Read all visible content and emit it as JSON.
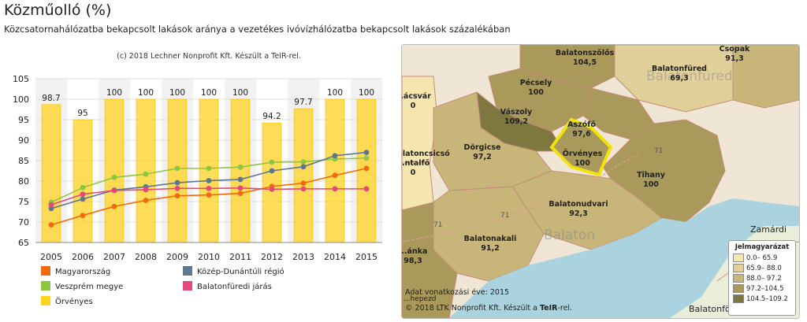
{
  "header": {
    "title": "Közműolló (%)",
    "subtitle": "Közcsatornahálózatba bekapcsolt lakások aránya a vezetékes ivóvízhálózatba bekapcsolt lakások százalékában"
  },
  "colors": {
    "bar": "#ffd21f",
    "bar_label": "#222222",
    "magyarorszag": "#f26a10",
    "veszprem": "#8ec641",
    "kozep_dunantul": "#5f7594",
    "balatonfured": "#e34a78",
    "band": "#f1f1f1",
    "grid": "#dddddd",
    "lake": "#aad3df"
  },
  "chart_data": {
    "type": "bar",
    "credit": "(c) 2018 Lechner Nonprofit Kft. Készült a TeIR-rel.",
    "categories": [
      "2005",
      "2006",
      "2007",
      "2008",
      "2009",
      "2010",
      "2011",
      "2012",
      "2013",
      "2014",
      "2015"
    ],
    "ylim": [
      65,
      105
    ],
    "yticks": [
      65,
      70,
      75,
      80,
      85,
      90,
      95,
      100,
      105
    ],
    "bar_series": {
      "name": "Örvényes",
      "values": [
        98.7,
        95,
        100,
        100,
        100,
        100,
        100,
        94.2,
        97.7,
        100,
        100
      ],
      "labels": [
        "98.7",
        "95",
        "100",
        "100",
        "100",
        "100",
        "100",
        "94.2",
        "97.7",
        "100",
        "100"
      ]
    },
    "line_series": [
      {
        "key": "magyarorszag",
        "name": "Magyarország",
        "values": [
          69.3,
          71.6,
          73.8,
          75.3,
          76.4,
          76.6,
          77.0,
          78.7,
          79.5,
          81.4,
          83.1
        ]
      },
      {
        "key": "veszprem",
        "name": "Veszprém megye",
        "values": [
          74.8,
          78.4,
          80.9,
          81.7,
          83.1,
          83.1,
          83.4,
          84.6,
          84.7,
          85.4,
          85.6
        ]
      },
      {
        "key": "kozep_dunantul",
        "name": "Közép-Dunántúli régió",
        "values": [
          73.3,
          75.6,
          77.8,
          78.6,
          79.6,
          80.1,
          80.4,
          82.5,
          83.5,
          86.2,
          87.0
        ]
      },
      {
        "key": "balatonfured",
        "name": "Balatonfüredi járás",
        "values": [
          74.2,
          76.8,
          77.7,
          77.9,
          78.2,
          78.2,
          78.3,
          78.0,
          78.1,
          78.1,
          78.1
        ]
      }
    ],
    "legend": [
      {
        "key": "magyarorszag",
        "label": "Magyarország"
      },
      {
        "key": "kozep_dunantul",
        "label": "Közép-Dunántúli régió"
      },
      {
        "key": "veszprem",
        "label": "Veszprém megye"
      },
      {
        "key": "balatonfured",
        "label": "Balatonfüredi járás"
      },
      {
        "key": "bar",
        "label": "Örvényes"
      }
    ]
  },
  "map": {
    "places": [
      {
        "key": "balatonszolos",
        "name": "Balatonszőlős",
        "value": "104,5"
      },
      {
        "key": "balatonfured",
        "name": "Balatonfüred",
        "value": "69,3"
      },
      {
        "key": "csopak",
        "name": "Csopak",
        "value": "91,3"
      },
      {
        "key": "pecsely",
        "name": "Pécsely",
        "value": "100"
      },
      {
        "key": "vaszoly",
        "name": "Vászoly",
        "value": "109,2"
      },
      {
        "key": "aszofo",
        "name": "Aszófő",
        "value": "97,6"
      },
      {
        "key": "orvenyes",
        "name": "Örvényes",
        "value": "100"
      },
      {
        "key": "dorgicse",
        "name": "Dörgicse",
        "value": "97,2"
      },
      {
        "key": "tihany",
        "name": "Tihany",
        "value": "100"
      },
      {
        "key": "balatonudvari",
        "name": "Balatonudvari",
        "value": "92,3"
      },
      {
        "key": "balatonakali",
        "name": "Balatonakali",
        "value": "91,2"
      },
      {
        "key": "x_var",
        "name": "...ácsvár",
        "value": "0"
      },
      {
        "key": "balatoncsicso",
        "name": "Balatoncsicsó",
        "value": ""
      },
      {
        "key": "x_talfo",
        "name": "...ntalfő",
        "value": "0"
      },
      {
        "key": "x_anka",
        "name": "...ánka",
        "value": "98,3"
      }
    ],
    "watermarks": [
      "Balatonfüred",
      "Balaton"
    ],
    "towns": [
      "Zamárdi",
      "Balatonföldvár",
      "...hepezd"
    ],
    "road_numbers": [
      "71",
      "71",
      "71"
    ],
    "legend": {
      "title": "Jelmagyarázat",
      "items": [
        {
          "label": "0.0– 65.9",
          "color": "#f5e6b0"
        },
        {
          "label": "65.9– 88.0",
          "color": "#e2d09a"
        },
        {
          "label": "88.0– 97.2",
          "color": "#c8b57a"
        },
        {
          "label": "97.2–104.5",
          "color": "#a99a5c"
        },
        {
          "label": "104.5–109.2",
          "color": "#7f7740"
        }
      ]
    },
    "data_year": "Adat vonatkozási éve: 2015",
    "credit_prefix": "© 2018 LTK Nonprofit Kft. Készült a",
    "credit_brand": "TeIR",
    "credit_suffix": "-rel."
  }
}
